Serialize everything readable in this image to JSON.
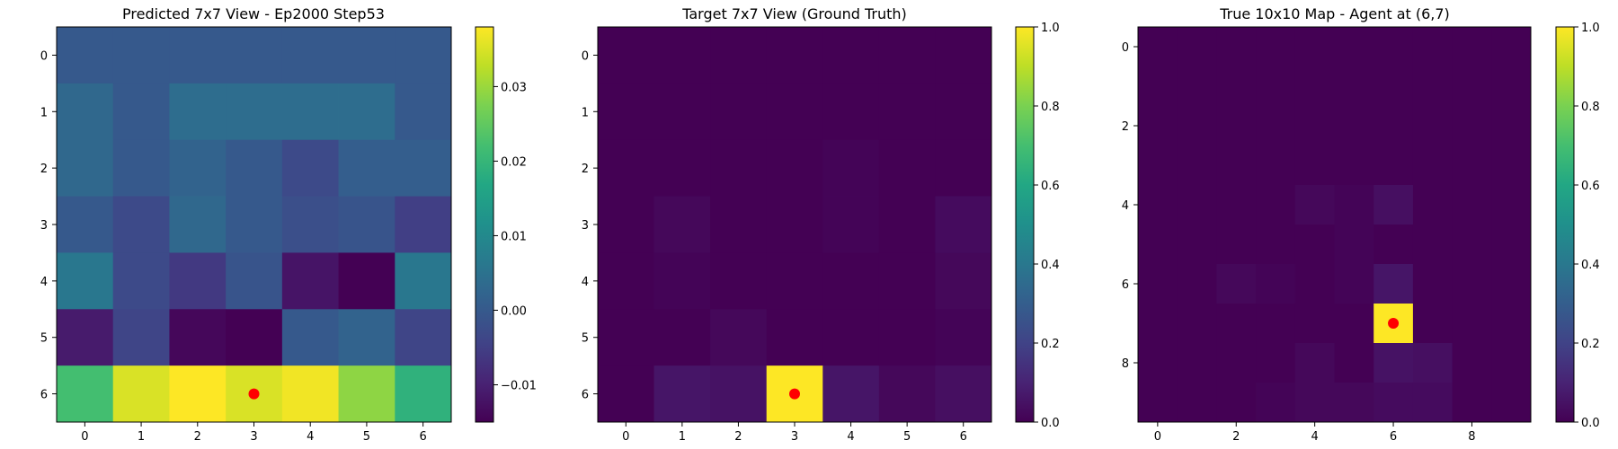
{
  "chart_data": [
    {
      "type": "heatmap",
      "title": "Predicted 7x7 View - Ep2000 Step53",
      "rows": 7,
      "cols": 7,
      "x_ticks": [
        0,
        1,
        2,
        3,
        4,
        5,
        6
      ],
      "y_ticks": [
        0,
        1,
        2,
        3,
        4,
        5,
        6
      ],
      "colorbar": {
        "vmin": -0.015,
        "vmax": 0.038,
        "ticks": [
          -0.01,
          0.0,
          0.01,
          0.02,
          0.03
        ],
        "tick_labels": [
          "−0.01",
          "0.00",
          "0.01",
          "0.02",
          "0.03"
        ]
      },
      "colormap": "viridis",
      "marker": {
        "row": 6,
        "col": 3,
        "color": "#ff0000"
      },
      "values": [
        [
          0.0,
          0.0,
          0.0,
          0.0,
          0.0,
          0.0,
          0.0
        ],
        [
          0.003,
          0.0,
          0.004,
          0.004,
          0.004,
          0.004,
          0.0
        ],
        [
          0.003,
          0.0,
          0.002,
          0.0,
          -0.003,
          0.001,
          0.001
        ],
        [
          0.0,
          -0.003,
          0.003,
          0.0,
          -0.002,
          -0.001,
          -0.005
        ],
        [
          0.006,
          -0.003,
          -0.006,
          -0.001,
          -0.012,
          -0.015,
          0.006
        ],
        [
          -0.011,
          -0.004,
          -0.014,
          -0.015,
          0.0,
          0.002,
          -0.004
        ],
        [
          0.022,
          0.035,
          0.038,
          0.035,
          0.037,
          0.029,
          0.019
        ]
      ]
    },
    {
      "type": "heatmap",
      "title": "Target 7x7 View (Ground Truth)",
      "rows": 7,
      "cols": 7,
      "x_ticks": [
        0,
        1,
        2,
        3,
        4,
        5,
        6
      ],
      "y_ticks": [
        0,
        1,
        2,
        3,
        4,
        5,
        6
      ],
      "colorbar": {
        "vmin": 0.0,
        "vmax": 1.0,
        "ticks": [
          0.0,
          0.2,
          0.4,
          0.6,
          0.8,
          1.0
        ],
        "tick_labels": [
          "0.0",
          "0.2",
          "0.4",
          "0.6",
          "0.8",
          "1.0"
        ]
      },
      "colormap": "viridis",
      "marker": {
        "row": 6,
        "col": 3,
        "color": "#ff0000"
      },
      "values": [
        [
          0.0,
          0.0,
          0.0,
          0.0,
          0.0,
          0.0,
          0.0
        ],
        [
          0.0,
          0.0,
          0.0,
          0.0,
          0.0,
          0.0,
          0.0
        ],
        [
          0.0,
          0.0,
          0.0,
          0.0,
          0.01,
          0.0,
          0.0
        ],
        [
          0.0,
          0.02,
          0.0,
          0.0,
          0.01,
          0.0,
          0.03
        ],
        [
          0.0,
          0.01,
          0.0,
          0.0,
          0.0,
          0.0,
          0.02
        ],
        [
          0.0,
          0.0,
          0.02,
          0.0,
          0.0,
          0.0,
          0.01
        ],
        [
          0.0,
          0.06,
          0.05,
          1.0,
          0.06,
          0.02,
          0.04
        ]
      ]
    },
    {
      "type": "heatmap",
      "title": "True 10x10 Map - Agent at (6,7)",
      "rows": 10,
      "cols": 10,
      "x_ticks": [
        0,
        2,
        4,
        6,
        8
      ],
      "y_ticks": [
        0,
        2,
        4,
        6,
        8
      ],
      "colorbar": {
        "vmin": 0.0,
        "vmax": 1.0,
        "ticks": [
          0.0,
          0.2,
          0.4,
          0.6,
          0.8,
          1.0
        ],
        "tick_labels": [
          "0.0",
          "0.2",
          "0.4",
          "0.6",
          "0.8",
          "1.0"
        ]
      },
      "colormap": "viridis",
      "marker": {
        "row": 7,
        "col": 6,
        "color": "#ff0000"
      },
      "values": [
        [
          0.0,
          0.0,
          0.0,
          0.0,
          0.0,
          0.0,
          0.0,
          0.0,
          0.0,
          0.0
        ],
        [
          0.0,
          0.0,
          0.0,
          0.0,
          0.0,
          0.0,
          0.0,
          0.0,
          0.0,
          0.0
        ],
        [
          0.0,
          0.0,
          0.0,
          0.0,
          0.0,
          0.0,
          0.0,
          0.0,
          0.0,
          0.0
        ],
        [
          0.0,
          0.0,
          0.0,
          0.0,
          0.0,
          0.0,
          0.0,
          0.0,
          0.0,
          0.0
        ],
        [
          0.0,
          0.0,
          0.0,
          0.0,
          0.02,
          0.01,
          0.04,
          0.0,
          0.0,
          0.0
        ],
        [
          0.0,
          0.0,
          0.0,
          0.0,
          0.0,
          0.01,
          0.0,
          0.0,
          0.0,
          0.0
        ],
        [
          0.0,
          0.0,
          0.02,
          0.01,
          0.0,
          0.01,
          0.06,
          0.0,
          0.0,
          0.0
        ],
        [
          0.0,
          0.0,
          0.0,
          0.0,
          0.0,
          0.0,
          1.0,
          0.0,
          0.0,
          0.0
        ],
        [
          0.0,
          0.0,
          0.0,
          0.0,
          0.02,
          0.0,
          0.05,
          0.04,
          0.0,
          0.0
        ],
        [
          0.0,
          0.0,
          0.0,
          0.01,
          0.02,
          0.02,
          0.03,
          0.03,
          0.0,
          0.0
        ]
      ]
    }
  ]
}
